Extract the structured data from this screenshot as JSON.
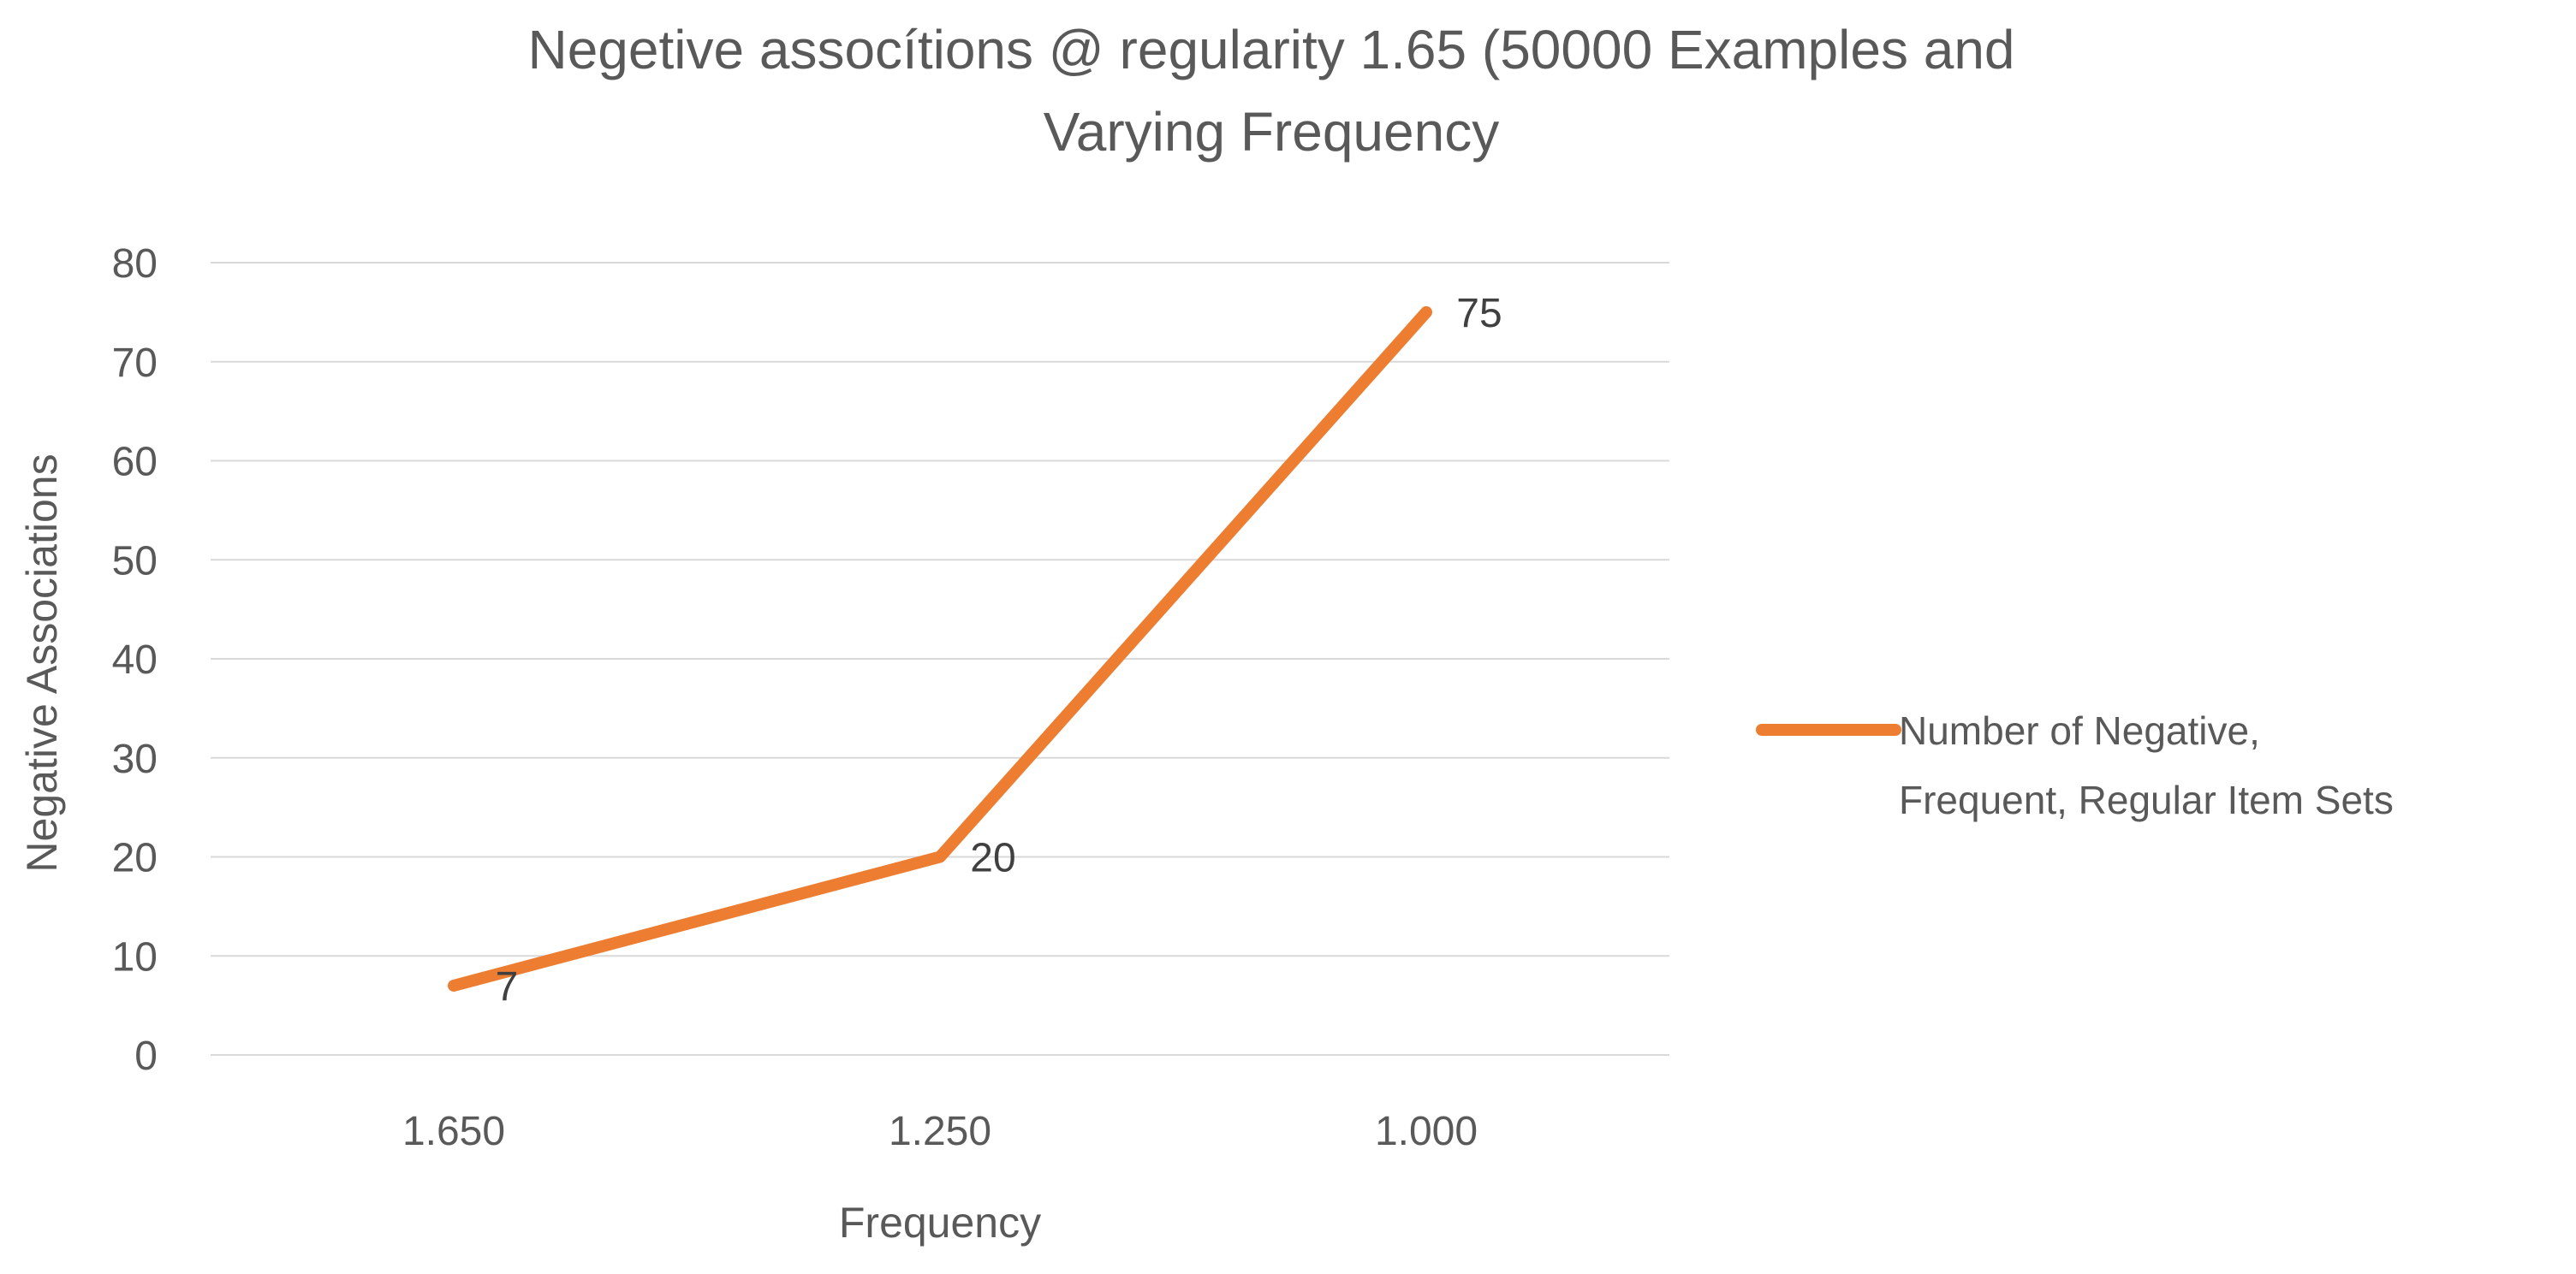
{
  "chart_data": {
    "type": "line",
    "title_lines": [
      "Negetive assocítions @ regularity 1.65 (50000 Examples and",
      "Varying Frequency"
    ],
    "xlabel": "Frequency",
    "ylabel": "Negative Associations",
    "categories": [
      "1.650",
      "1.250",
      "1.000"
    ],
    "series": [
      {
        "name_lines": [
          "Number of  Negative,",
          "Frequent,  Regular Item Sets"
        ],
        "values": [
          7,
          20,
          75
        ],
        "color": "#ED7D31"
      }
    ],
    "data_labels": [
      "7",
      "20",
      "75"
    ],
    "ylim": [
      0,
      80
    ],
    "yticks": [
      "0",
      "10",
      "20",
      "30",
      "40",
      "50",
      "60",
      "70",
      "80"
    ],
    "grid": true,
    "legend_position": "right",
    "colors": {
      "text": "#595959",
      "grid": "#D9D9D9",
      "series": "#ED7D31"
    }
  }
}
